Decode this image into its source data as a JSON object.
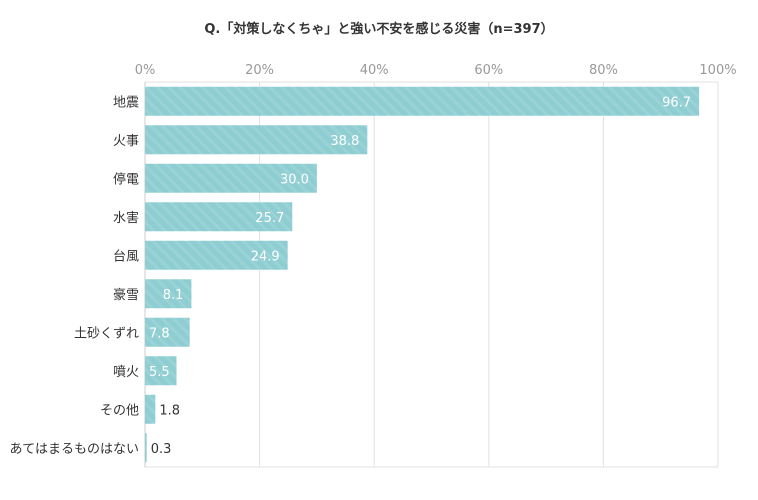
{
  "chart_data": {
    "type": "bar",
    "orientation": "horizontal",
    "title": "Q.「対策しなくちゃ」と強い不安を感じる災害（n=397）",
    "categories": [
      "地震",
      "火事",
      "停電",
      "水害",
      "台風",
      "豪雪",
      "土砂くずれ",
      "噴火",
      "その他",
      "あてはまるものはない"
    ],
    "values": [
      96.7,
      38.8,
      30.0,
      25.7,
      24.9,
      8.1,
      7.8,
      5.5,
      1.8,
      0.3
    ],
    "value_labels": [
      "96.7",
      "38.8",
      "30.0",
      "25.7",
      "24.9",
      "8.1",
      "7.8",
      "5.5",
      "1.8",
      "0.3"
    ],
    "xlim": [
      0,
      100
    ],
    "xticks": [
      "0%",
      "20%",
      "40%",
      "60%",
      "80%",
      "100%"
    ],
    "xtick_values": [
      0,
      20,
      40,
      60,
      80,
      100
    ],
    "grid": true,
    "legend": "none",
    "colors": {
      "bar": "#8ecdd1",
      "bar_stripe": "#9fd5d8",
      "grid": "#e2e2e2",
      "axis": "#cccccc"
    }
  }
}
